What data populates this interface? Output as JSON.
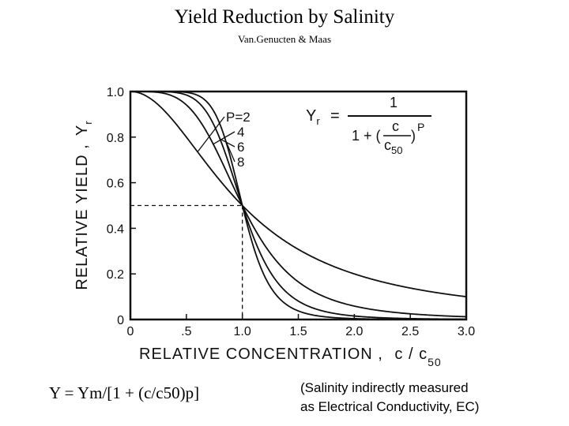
{
  "page": {
    "title": "Yield Reduction by Salinity",
    "subtitle": "Van.Genucten & Maas",
    "equation_text": "Y = Ym/[1 + (c/c50)p]",
    "note_line1": "(Salinity indirectly measured",
    "note_line2": "as Electrical Conductivity, EC)"
  },
  "chart_data": {
    "type": "line",
    "title": "Yield Reduction by Salinity",
    "xlabel": "RELATIVE CONCENTRATION , c/c50",
    "ylabel": "RELATIVE YIELD , Yr",
    "xlabel_main": "RELATIVE CONCENTRATION ,",
    "xlabel_var": "c / c",
    "xlabel_sub": "50",
    "ylabel_main": "RELATIVE YIELD ,",
    "ylabel_var": "Y",
    "ylabel_sub": "r",
    "xlim": [
      0,
      3.0
    ],
    "ylim": [
      0,
      1.0
    ],
    "x_ticks": [
      0,
      0.5,
      1.0,
      1.5,
      2.0,
      2.5,
      3.0
    ],
    "x_tick_labels": [
      "0",
      ".5",
      "1.0",
      "1.5",
      "2.0",
      "2.5",
      "3.0"
    ],
    "y_ticks": [
      0,
      0.2,
      0.4,
      0.6,
      0.8,
      1.0
    ],
    "y_tick_labels": [
      "0",
      "0.2",
      "0.4",
      "0.6",
      "0.8",
      "1.0"
    ],
    "grid": false,
    "reference_point": {
      "x": 1.0,
      "y": 0.5
    },
    "formula": "Yr = 1 / (1 + (c/c50)^P)",
    "legend_prefix": "P=",
    "series": [
      {
        "name": "2",
        "p": 2,
        "x": [
          0,
          0.25,
          0.5,
          0.75,
          1.0,
          1.25,
          1.5,
          1.75,
          2.0,
          2.25,
          2.5,
          2.75,
          3.0
        ],
        "values": [
          1.0,
          0.941,
          0.8,
          0.64,
          0.5,
          0.39,
          0.308,
          0.246,
          0.2,
          0.165,
          0.138,
          0.117,
          0.1
        ]
      },
      {
        "name": "4",
        "p": 4,
        "x": [
          0,
          0.25,
          0.5,
          0.75,
          1.0,
          1.25,
          1.5,
          1.75,
          2.0,
          2.25,
          2.5,
          2.75,
          3.0
        ],
        "values": [
          1.0,
          0.996,
          0.941,
          0.76,
          0.5,
          0.291,
          0.165,
          0.096,
          0.059,
          0.038,
          0.025,
          0.017,
          0.012
        ]
      },
      {
        "name": "6",
        "p": 6,
        "x": [
          0,
          0.25,
          0.5,
          0.75,
          1.0,
          1.25,
          1.5,
          1.75,
          2.0,
          2.25,
          2.5,
          2.75,
          3.0
        ],
        "values": [
          1.0,
          1.0,
          0.985,
          0.849,
          0.5,
          0.208,
          0.081,
          0.034,
          0.015,
          0.008,
          0.004,
          0.002,
          0.001
        ]
      },
      {
        "name": "8",
        "p": 8,
        "x": [
          0,
          0.25,
          0.5,
          0.75,
          1.0,
          1.25,
          1.5,
          1.75,
          2.0,
          2.25,
          2.5,
          2.75,
          3.0
        ],
        "values": [
          1.0,
          1.0,
          0.996,
          0.909,
          0.5,
          0.144,
          0.038,
          0.011,
          0.004,
          0.001,
          0.001,
          0.0,
          0.0
        ]
      }
    ],
    "inset_formula": {
      "lhs_var": "Y",
      "lhs_sub": "r",
      "equals": "=",
      "numerator": "1",
      "denom_prefix": "1 + (",
      "frac_num": "c",
      "frac_den_var": "c",
      "frac_den_sub": "50",
      "close_paren": ")",
      "exponent": "P"
    }
  }
}
